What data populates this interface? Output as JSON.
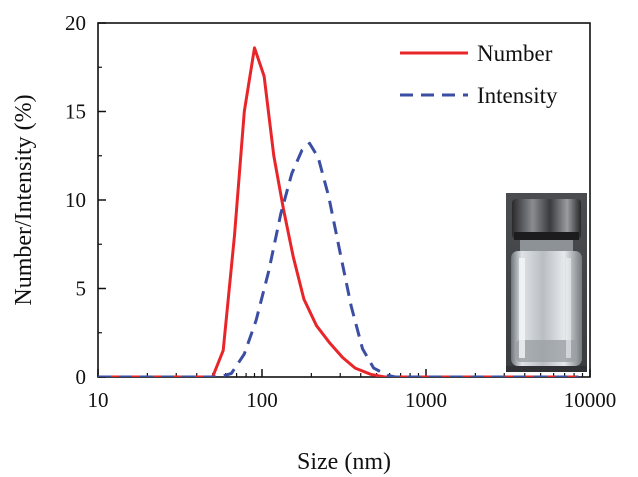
{
  "chart_data": {
    "type": "line",
    "xlabel": "Size (nm)",
    "ylabel": "Number/Intensity (%)",
    "xscale": "log",
    "xlim": [
      10,
      10000
    ],
    "ylim": [
      0,
      20
    ],
    "x_ticks": [
      10,
      100,
      1000,
      10000
    ],
    "x_tick_labels": [
      "10",
      "100",
      "1000",
      "10000"
    ],
    "y_ticks": [
      0,
      5,
      10,
      15,
      20
    ],
    "y_tick_labels": [
      "0",
      "5",
      "10",
      "15",
      "20"
    ],
    "legend_position": "top-right",
    "grid": false,
    "series": [
      {
        "name": "Number",
        "color": "#e8262a",
        "style": "solid",
        "points": [
          [
            10,
            0
          ],
          [
            50,
            0
          ],
          [
            58,
            1.5
          ],
          [
            68,
            8.0
          ],
          [
            78,
            15.0
          ],
          [
            90,
            18.6
          ],
          [
            103,
            17.0
          ],
          [
            118,
            12.5
          ],
          [
            135,
            9.5
          ],
          [
            155,
            6.8
          ],
          [
            180,
            4.4
          ],
          [
            215,
            2.9
          ],
          [
            260,
            1.9
          ],
          [
            310,
            1.1
          ],
          [
            370,
            0.5
          ],
          [
            460,
            0.15
          ],
          [
            560,
            0
          ],
          [
            8500,
            0
          ]
        ]
      },
      {
        "name": "Intensity",
        "color": "#3b4ea3",
        "style": "dashed",
        "points": [
          [
            10,
            0
          ],
          [
            55,
            0
          ],
          [
            65,
            0.2
          ],
          [
            78,
            1.3
          ],
          [
            92,
            3.2
          ],
          [
            110,
            6.0
          ],
          [
            130,
            9.2
          ],
          [
            152,
            11.5
          ],
          [
            175,
            12.8
          ],
          [
            195,
            13.2
          ],
          [
            220,
            12.4
          ],
          [
            255,
            10.2
          ],
          [
            300,
            7.0
          ],
          [
            350,
            4.0
          ],
          [
            410,
            1.6
          ],
          [
            480,
            0.5
          ],
          [
            580,
            0.1
          ],
          [
            650,
            0
          ],
          [
            8500,
            0
          ]
        ]
      }
    ]
  },
  "inset": {
    "description_icon": "glass-vial-photo"
  }
}
